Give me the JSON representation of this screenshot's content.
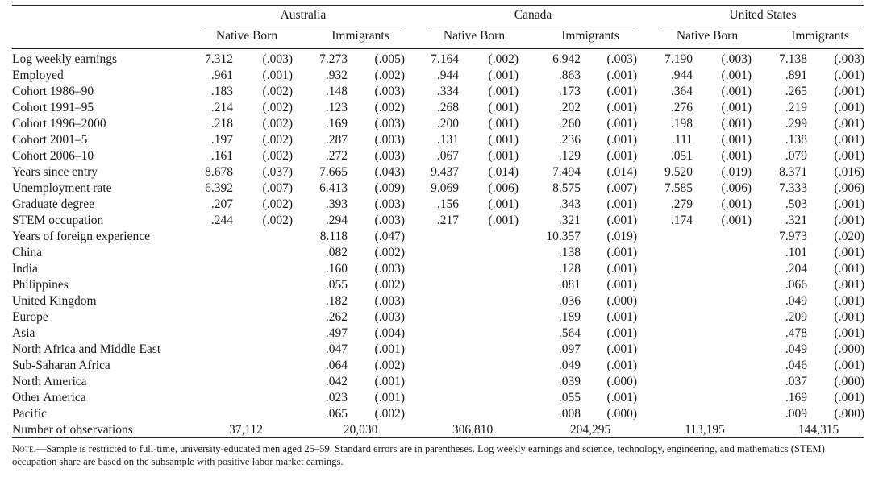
{
  "countries": [
    "Australia",
    "Canada",
    "United States"
  ],
  "groups": [
    "Native Born",
    "Immigrants"
  ],
  "rows": [
    {
      "label": "Log weekly earnings",
      "v": [
        [
          "7.312",
          "(.003)"
        ],
        [
          "7.273",
          "(.005)"
        ],
        [
          "7.164",
          "(.002)"
        ],
        [
          "6.942",
          "(.003)"
        ],
        [
          "7.190",
          "(.003)"
        ],
        [
          "7.138",
          "(.003)"
        ]
      ]
    },
    {
      "label": "Employed",
      "v": [
        [
          ".961",
          "(.001)"
        ],
        [
          ".932",
          "(.002)"
        ],
        [
          ".944",
          "(.001)"
        ],
        [
          ".863",
          "(.001)"
        ],
        [
          ".944",
          "(.001)"
        ],
        [
          ".891",
          "(.001)"
        ]
      ]
    },
    {
      "label": "Cohort 1986–90",
      "v": [
        [
          ".183",
          "(.002)"
        ],
        [
          ".148",
          "(.003)"
        ],
        [
          ".334",
          "(.001)"
        ],
        [
          ".173",
          "(.001)"
        ],
        [
          ".364",
          "(.001)"
        ],
        [
          ".265",
          "(.001)"
        ]
      ]
    },
    {
      "label": "Cohort 1991–95",
      "v": [
        [
          ".214",
          "(.002)"
        ],
        [
          ".123",
          "(.002)"
        ],
        [
          ".268",
          "(.001)"
        ],
        [
          ".202",
          "(.001)"
        ],
        [
          ".276",
          "(.001)"
        ],
        [
          ".219",
          "(.001)"
        ]
      ]
    },
    {
      "label": "Cohort 1996–2000",
      "v": [
        [
          ".218",
          "(.002)"
        ],
        [
          ".169",
          "(.003)"
        ],
        [
          ".200",
          "(.001)"
        ],
        [
          ".260",
          "(.001)"
        ],
        [
          ".198",
          "(.001)"
        ],
        [
          ".299",
          "(.001)"
        ]
      ]
    },
    {
      "label": "Cohort 2001–5",
      "v": [
        [
          ".197",
          "(.002)"
        ],
        [
          ".287",
          "(.003)"
        ],
        [
          ".131",
          "(.001)"
        ],
        [
          ".236",
          "(.001)"
        ],
        [
          ".111",
          "(.001)"
        ],
        [
          ".138",
          "(.001)"
        ]
      ]
    },
    {
      "label": "Cohort 2006–10",
      "v": [
        [
          ".161",
          "(.002)"
        ],
        [
          ".272",
          "(.003)"
        ],
        [
          ".067",
          "(.001)"
        ],
        [
          ".129",
          "(.001)"
        ],
        [
          ".051",
          "(.001)"
        ],
        [
          ".079",
          "(.001)"
        ]
      ]
    },
    {
      "label": "Years since entry",
      "v": [
        [
          "8.678",
          "(.037)"
        ],
        [
          "7.665",
          "(.043)"
        ],
        [
          "9.437",
          "(.014)"
        ],
        [
          "7.494",
          "(.014)"
        ],
        [
          "9.520",
          "(.019)"
        ],
        [
          "8.371",
          "(.016)"
        ]
      ]
    },
    {
      "label": "Unemployment rate",
      "v": [
        [
          "6.392",
          "(.007)"
        ],
        [
          "6.413",
          "(.009)"
        ],
        [
          "9.069",
          "(.006)"
        ],
        [
          "8.575",
          "(.007)"
        ],
        [
          "7.585",
          "(.006)"
        ],
        [
          "7.333",
          "(.006)"
        ]
      ]
    },
    {
      "label": "Graduate degree",
      "v": [
        [
          ".207",
          "(.002)"
        ],
        [
          ".393",
          "(.003)"
        ],
        [
          ".156",
          "(.001)"
        ],
        [
          ".343",
          "(.001)"
        ],
        [
          ".279",
          "(.001)"
        ],
        [
          ".503",
          "(.001)"
        ]
      ]
    },
    {
      "label": "STEM occupation",
      "v": [
        [
          ".244",
          "(.002)"
        ],
        [
          ".294",
          "(.003)"
        ],
        [
          ".217",
          "(.001)"
        ],
        [
          ".321",
          "(.001)"
        ],
        [
          ".174",
          "(.001)"
        ],
        [
          ".321",
          "(.001)"
        ]
      ]
    },
    {
      "label": "Years of foreign experience",
      "v": [
        null,
        [
          "8.118",
          "(.047)"
        ],
        null,
        [
          "10.357",
          "(.019)"
        ],
        null,
        [
          "7.973",
          "(.020)"
        ]
      ]
    },
    {
      "label": "China",
      "v": [
        null,
        [
          ".082",
          "(.002)"
        ],
        null,
        [
          ".138",
          "(.001)"
        ],
        null,
        [
          ".101",
          "(.001)"
        ]
      ]
    },
    {
      "label": "India",
      "v": [
        null,
        [
          ".160",
          "(.003)"
        ],
        null,
        [
          ".128",
          "(.001)"
        ],
        null,
        [
          ".204",
          "(.001)"
        ]
      ]
    },
    {
      "label": "Philippines",
      "v": [
        null,
        [
          ".055",
          "(.002)"
        ],
        null,
        [
          ".081",
          "(.001)"
        ],
        null,
        [
          ".066",
          "(.001)"
        ]
      ]
    },
    {
      "label": "United Kingdom",
      "v": [
        null,
        [
          ".182",
          "(.003)"
        ],
        null,
        [
          ".036",
          "(.000)"
        ],
        null,
        [
          ".049",
          "(.001)"
        ]
      ]
    },
    {
      "label": "Europe",
      "v": [
        null,
        [
          ".262",
          "(.003)"
        ],
        null,
        [
          ".189",
          "(.001)"
        ],
        null,
        [
          ".209",
          "(.001)"
        ]
      ]
    },
    {
      "label": "Asia",
      "v": [
        null,
        [
          ".497",
          "(.004)"
        ],
        null,
        [
          ".564",
          "(.001)"
        ],
        null,
        [
          ".478",
          "(.001)"
        ]
      ]
    },
    {
      "label": "North Africa and Middle East",
      "v": [
        null,
        [
          ".047",
          "(.001)"
        ],
        null,
        [
          ".097",
          "(.001)"
        ],
        null,
        [
          ".049",
          "(.000)"
        ]
      ]
    },
    {
      "label": "Sub-Saharan Africa",
      "v": [
        null,
        [
          ".064",
          "(.002)"
        ],
        null,
        [
          ".049",
          "(.001)"
        ],
        null,
        [
          ".046",
          "(.001)"
        ]
      ]
    },
    {
      "label": "North America",
      "v": [
        null,
        [
          ".042",
          "(.001)"
        ],
        null,
        [
          ".039",
          "(.000)"
        ],
        null,
        [
          ".037",
          "(.000)"
        ]
      ]
    },
    {
      "label": "Other America",
      "v": [
        null,
        [
          ".023",
          "(.001)"
        ],
        null,
        [
          ".055",
          "(.001)"
        ],
        null,
        [
          ".169",
          "(.001)"
        ]
      ]
    },
    {
      "label": "Pacific",
      "v": [
        null,
        [
          ".065",
          "(.002)"
        ],
        null,
        [
          ".008",
          "(.000)"
        ],
        null,
        [
          ".009",
          "(.000)"
        ]
      ]
    }
  ],
  "observations": {
    "label": "Number of observations",
    "values": [
      "37,112",
      "20,030",
      "306,810",
      "204,295",
      "113,195",
      "144,315"
    ]
  },
  "note": {
    "lead": "Note",
    "text": ".—Sample is restricted to full-time, university-educated men aged 25–59. Standard errors are in parentheses. Log weekly earnings and science, technology, engineering, and mathematics (STEM) occupation share are based on the subsample with positive labor market earnings."
  }
}
